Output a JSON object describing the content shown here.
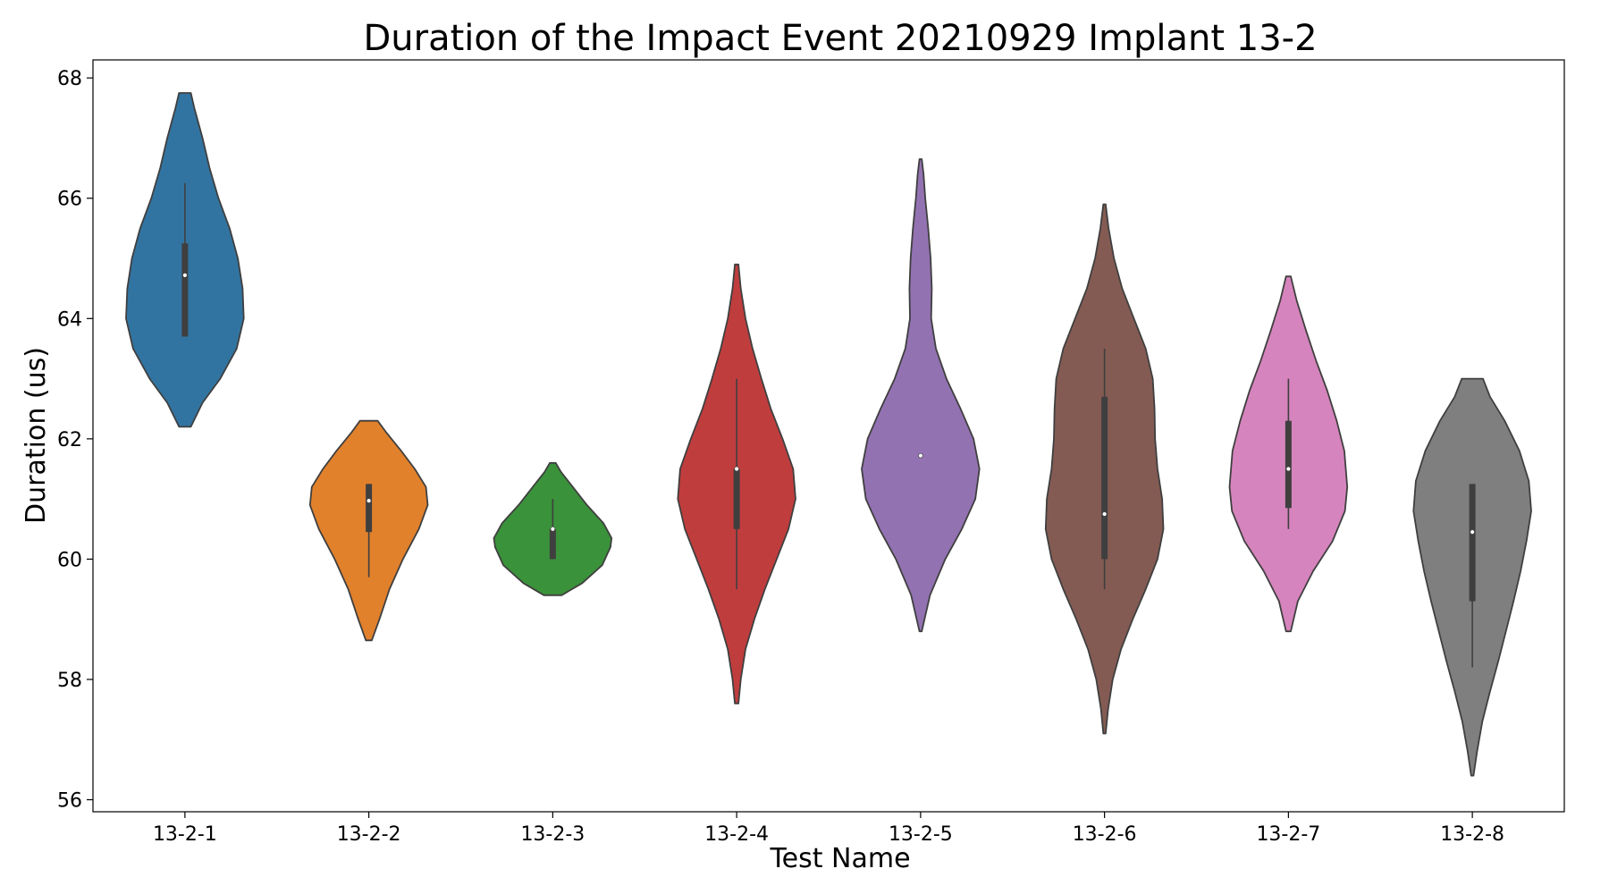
{
  "chart_data": {
    "type": "violin",
    "title": "Duration of the Impact Event 20210929 Implant 13-2",
    "xlabel": "Test Name",
    "ylabel": "Duration (us)",
    "ylim": [
      55.8,
      68.3
    ],
    "yticks": [
      "56",
      "58",
      "60",
      "62",
      "64",
      "66",
      "68"
    ],
    "grid": false,
    "legend": "none",
    "categories": [
      "13-2-1",
      "13-2-2",
      "13-2-3",
      "13-2-4",
      "13-2-5",
      "13-2-6",
      "13-2-7",
      "13-2-8"
    ],
    "series": [
      {
        "category": "13-2-1",
        "color": "#3274a1",
        "min": 62.2,
        "max": 67.75,
        "q1": 63.7,
        "median": 64.72,
        "q3": 65.25,
        "whisker_low": 63.7,
        "whisker_high": 66.25,
        "profile": [
          [
            62.2,
            0.1
          ],
          [
            62.6,
            0.3
          ],
          [
            63.0,
            0.6
          ],
          [
            63.5,
            0.88
          ],
          [
            64.0,
            1.0
          ],
          [
            64.5,
            0.98
          ],
          [
            65.0,
            0.9
          ],
          [
            65.5,
            0.76
          ],
          [
            66.0,
            0.57
          ],
          [
            66.5,
            0.42
          ],
          [
            67.0,
            0.3
          ],
          [
            67.5,
            0.16
          ],
          [
            67.75,
            0.1
          ]
        ]
      },
      {
        "category": "13-2-2",
        "color": "#e1812c",
        "min": 58.65,
        "max": 62.3,
        "q1": 60.45,
        "median": 60.97,
        "q3": 61.25,
        "whisker_low": 59.7,
        "whisker_high": 61.25,
        "profile": [
          [
            58.65,
            0.05
          ],
          [
            59.0,
            0.18
          ],
          [
            59.5,
            0.35
          ],
          [
            60.0,
            0.58
          ],
          [
            60.5,
            0.85
          ],
          [
            60.9,
            1.0
          ],
          [
            61.2,
            0.97
          ],
          [
            61.5,
            0.78
          ],
          [
            61.8,
            0.55
          ],
          [
            62.1,
            0.3
          ],
          [
            62.3,
            0.15
          ]
        ]
      },
      {
        "category": "13-2-3",
        "color": "#3a923a",
        "min": 59.4,
        "max": 61.6,
        "q1": 60.0,
        "median": 60.5,
        "q3": 60.5,
        "whisker_low": 60.0,
        "whisker_high": 61.0,
        "profile": [
          [
            59.4,
            0.15
          ],
          [
            59.6,
            0.5
          ],
          [
            59.9,
            0.84
          ],
          [
            60.2,
            0.98
          ],
          [
            60.35,
            1.0
          ],
          [
            60.6,
            0.86
          ],
          [
            60.9,
            0.58
          ],
          [
            61.2,
            0.34
          ],
          [
            61.45,
            0.14
          ],
          [
            61.6,
            0.05
          ]
        ]
      },
      {
        "category": "13-2-4",
        "color": "#c03d3e",
        "min": 57.6,
        "max": 64.9,
        "q1": 60.5,
        "median": 61.5,
        "q3": 61.5,
        "whisker_low": 59.5,
        "whisker_high": 63.0,
        "profile": [
          [
            57.6,
            0.03
          ],
          [
            58.0,
            0.07
          ],
          [
            58.5,
            0.15
          ],
          [
            59.0,
            0.3
          ],
          [
            59.5,
            0.48
          ],
          [
            60.0,
            0.68
          ],
          [
            60.5,
            0.88
          ],
          [
            61.0,
            1.0
          ],
          [
            61.5,
            0.96
          ],
          [
            62.0,
            0.78
          ],
          [
            62.5,
            0.58
          ],
          [
            63.0,
            0.42
          ],
          [
            63.5,
            0.27
          ],
          [
            64.0,
            0.15
          ],
          [
            64.5,
            0.07
          ],
          [
            64.9,
            0.03
          ]
        ]
      },
      {
        "category": "13-2-5",
        "color": "#9372b2",
        "min": 58.8,
        "max": 66.65,
        "q1": 61.72,
        "median": 61.72,
        "q3": 61.72,
        "whisker_low": 61.72,
        "whisker_high": 61.72,
        "profile": [
          [
            58.8,
            0.02
          ],
          [
            59.4,
            0.16
          ],
          [
            60.0,
            0.42
          ],
          [
            60.5,
            0.7
          ],
          [
            61.0,
            0.93
          ],
          [
            61.5,
            1.0
          ],
          [
            62.0,
            0.9
          ],
          [
            62.5,
            0.68
          ],
          [
            63.0,
            0.44
          ],
          [
            63.5,
            0.26
          ],
          [
            64.0,
            0.18
          ],
          [
            64.5,
            0.19
          ],
          [
            65.0,
            0.17
          ],
          [
            65.5,
            0.13
          ],
          [
            66.0,
            0.08
          ],
          [
            66.4,
            0.05
          ],
          [
            66.65,
            0.02
          ]
        ]
      },
      {
        "category": "13-2-6",
        "color": "#845b53",
        "min": 57.1,
        "max": 65.9,
        "q1": 60.0,
        "median": 60.75,
        "q3": 62.7,
        "whisker_low": 59.5,
        "whisker_high": 63.5,
        "profile": [
          [
            57.1,
            0.02
          ],
          [
            57.5,
            0.06
          ],
          [
            58.0,
            0.14
          ],
          [
            58.5,
            0.28
          ],
          [
            59.0,
            0.48
          ],
          [
            59.5,
            0.7
          ],
          [
            60.0,
            0.9
          ],
          [
            60.5,
            1.0
          ],
          [
            61.0,
            0.98
          ],
          [
            61.5,
            0.9
          ],
          [
            62.0,
            0.86
          ],
          [
            62.5,
            0.85
          ],
          [
            63.0,
            0.82
          ],
          [
            63.5,
            0.7
          ],
          [
            64.0,
            0.5
          ],
          [
            64.5,
            0.3
          ],
          [
            65.0,
            0.16
          ],
          [
            65.5,
            0.07
          ],
          [
            65.9,
            0.02
          ]
        ]
      },
      {
        "category": "13-2-7",
        "color": "#d684bd",
        "min": 58.8,
        "max": 64.7,
        "q1": 60.85,
        "median": 61.5,
        "q3": 62.3,
        "whisker_low": 60.5,
        "whisker_high": 63.0,
        "profile": [
          [
            58.8,
            0.04
          ],
          [
            59.3,
            0.16
          ],
          [
            59.8,
            0.42
          ],
          [
            60.3,
            0.75
          ],
          [
            60.8,
            0.96
          ],
          [
            61.2,
            1.0
          ],
          [
            61.8,
            0.95
          ],
          [
            62.3,
            0.82
          ],
          [
            62.8,
            0.66
          ],
          [
            63.3,
            0.47
          ],
          [
            63.8,
            0.3
          ],
          [
            64.3,
            0.14
          ],
          [
            64.7,
            0.04
          ]
        ]
      },
      {
        "category": "13-2-8",
        "color": "#7f7f7f",
        "min": 56.4,
        "max": 63.0,
        "q1": 59.3,
        "median": 60.45,
        "q3": 61.25,
        "whisker_low": 58.2,
        "whisker_high": 61.25,
        "profile": [
          [
            56.4,
            0.02
          ],
          [
            56.8,
            0.08
          ],
          [
            57.3,
            0.17
          ],
          [
            57.8,
            0.3
          ],
          [
            58.3,
            0.44
          ],
          [
            58.8,
            0.57
          ],
          [
            59.3,
            0.7
          ],
          [
            59.8,
            0.82
          ],
          [
            60.3,
            0.92
          ],
          [
            60.8,
            1.0
          ],
          [
            61.3,
            0.96
          ],
          [
            61.8,
            0.8
          ],
          [
            62.3,
            0.55
          ],
          [
            62.7,
            0.3
          ],
          [
            63.0,
            0.18
          ]
        ]
      }
    ]
  }
}
